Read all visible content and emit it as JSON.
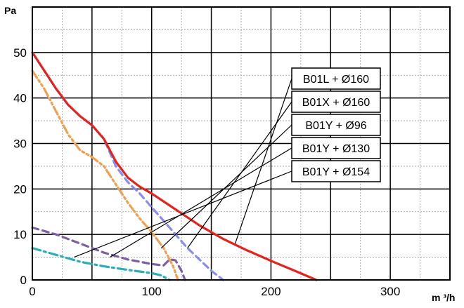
{
  "chart_data": {
    "type": "line",
    "title": "",
    "ylabel": "Pa",
    "xlabel": "m ³/h",
    "xlim": [
      0,
      350
    ],
    "ylim": [
      0,
      60
    ],
    "x_ticks": [
      0,
      100,
      200,
      300
    ],
    "y_ticks": [
      0,
      10,
      20,
      30,
      40,
      50
    ],
    "minor_grid": {
      "x_step": 25,
      "y_step": 5
    },
    "grid": true,
    "legend_placement": "callout boxes upper-right with leader lines",
    "series": [
      {
        "name": "B01L + Ø160",
        "color": "#e8211c",
        "dash": "solid",
        "points": [
          [
            0,
            50
          ],
          [
            10,
            46
          ],
          [
            20,
            42
          ],
          [
            30,
            38.5
          ],
          [
            40,
            36
          ],
          [
            50,
            34
          ],
          [
            60,
            31
          ],
          [
            70,
            26
          ],
          [
            80,
            22.5
          ],
          [
            90,
            20.5
          ],
          [
            100,
            19
          ],
          [
            120,
            15.5
          ],
          [
            140,
            12
          ],
          [
            160,
            9
          ],
          [
            180,
            6.5
          ],
          [
            200,
            4.2
          ],
          [
            220,
            2
          ],
          [
            238,
            0
          ]
        ],
        "label_anchor": [
          170,
          8
        ]
      },
      {
        "name": "B01X + Ø160",
        "color": "#8a8cf0",
        "dash": "dashed",
        "points": [
          [
            0,
            50
          ],
          [
            10,
            46
          ],
          [
            20,
            42
          ],
          [
            30,
            38.5
          ],
          [
            40,
            36
          ],
          [
            50,
            34
          ],
          [
            60,
            31
          ],
          [
            70,
            25
          ],
          [
            80,
            21.5
          ],
          [
            90,
            19
          ],
          [
            100,
            16
          ],
          [
            110,
            13
          ],
          [
            120,
            10
          ],
          [
            130,
            7
          ],
          [
            140,
            4.5
          ],
          [
            150,
            2
          ],
          [
            160,
            0
          ]
        ],
        "label_anchor": [
          130,
          7
        ]
      },
      {
        "name": "B01Y + Ø96",
        "color": "#f0a050",
        "dash": "dashdotdot",
        "points": [
          [
            0,
            46
          ],
          [
            10,
            42
          ],
          [
            20,
            37
          ],
          [
            30,
            32
          ],
          [
            40,
            28.5
          ],
          [
            50,
            27
          ],
          [
            60,
            25
          ],
          [
            70,
            21
          ],
          [
            80,
            17
          ],
          [
            90,
            13.5
          ],
          [
            100,
            10.5
          ],
          [
            110,
            7
          ],
          [
            118,
            3
          ],
          [
            122,
            0
          ]
        ],
        "label_anchor": [
          108,
          7
        ]
      },
      {
        "name": "B01Y + Ø130",
        "color": "#7d5fa6",
        "dash": "dashed",
        "points": [
          [
            0,
            11.5
          ],
          [
            20,
            10
          ],
          [
            40,
            8
          ],
          [
            60,
            6
          ],
          [
            80,
            4.5
          ],
          [
            100,
            3.5
          ],
          [
            110,
            3.2
          ],
          [
            115,
            4.5
          ],
          [
            120,
            4.3
          ],
          [
            125,
            2
          ],
          [
            128,
            0
          ]
        ],
        "label_anchor": [
          65,
          5
        ]
      },
      {
        "name": "B01Y + Ø154",
        "color": "#2aaeb8",
        "dash": "dashdot",
        "points": [
          [
            0,
            7
          ],
          [
            20,
            5.5
          ],
          [
            40,
            4
          ],
          [
            60,
            3
          ],
          [
            80,
            2.2
          ],
          [
            100,
            1.5
          ],
          [
            108,
            1
          ],
          [
            115,
            0
          ]
        ],
        "label_anchor": [
          35,
          5
        ]
      }
    ]
  }
}
